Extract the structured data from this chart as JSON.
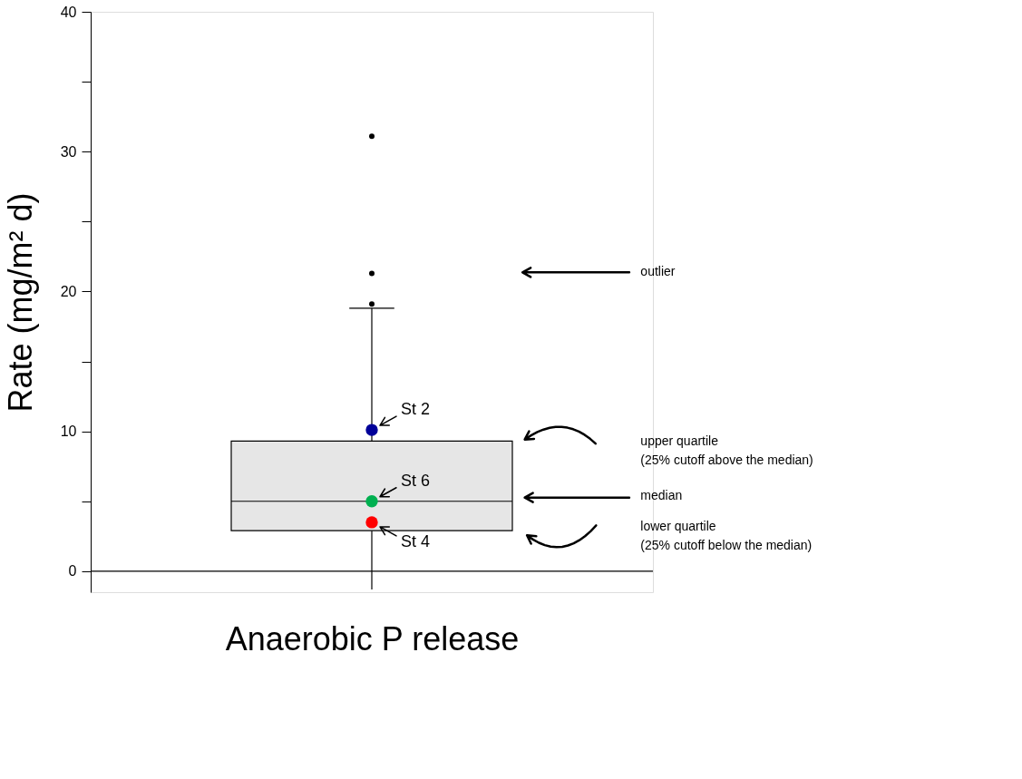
{
  "chart_data": {
    "type": "box",
    "xlabel": "Anaerobic P release",
    "ylabel": "Rate (mg/m² d)",
    "categories": [
      null
    ],
    "boxes": [
      {
        "low": -1.3,
        "q1": 2.9,
        "median": 5.0,
        "q3": 9.3,
        "high": 18.8,
        "outliers": [
          19.1,
          21.3,
          31.1
        ]
      }
    ],
    "series": [
      {
        "type": "scatter",
        "name": "St 2",
        "color": "#000099",
        "values": [
          10.1
        ]
      },
      {
        "type": "scatter",
        "name": "St 6",
        "color": "#00b050",
        "values": [
          5.0
        ]
      },
      {
        "type": "scatter",
        "name": "St 4",
        "color": "#ff0000",
        "values": [
          3.5
        ]
      }
    ],
    "ylim": [
      -1.5,
      40
    ],
    "yticks": [
      0,
      {
        "value": 5,
        "label": null
      },
      10,
      {
        "value": 15,
        "label": null
      },
      20,
      {
        "value": 25,
        "label": null
      },
      30,
      {
        "value": 35,
        "label": null
      },
      40
    ],
    "ref_lines": [
      {
        "axis": "y",
        "value": 0
      }
    ],
    "annotations": [
      "outlier",
      "upper quartile\n(25% cutoff above the median)",
      "median",
      "lower quartile\n(25% cutoff below the median)"
    ],
    "grid": false
  }
}
